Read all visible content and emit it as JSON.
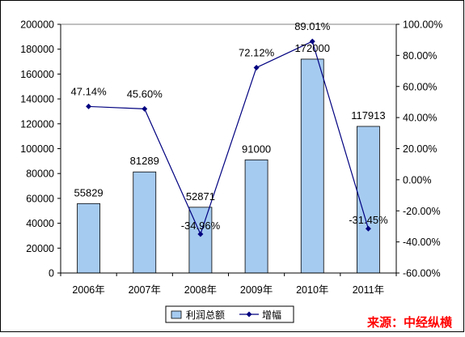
{
  "chart_data": {
    "type": "bar",
    "categories": [
      "2006年",
      "2007年",
      "2008年",
      "2009年",
      "2010年",
      "2011年"
    ],
    "series": [
      {
        "name": "利润总额",
        "chart": "bar",
        "axis": "left",
        "values": [
          55829,
          81289,
          52871,
          91000,
          172000,
          117913
        ],
        "labels": [
          "55829",
          "81289",
          "52871",
          "91000",
          "172000",
          "117913"
        ],
        "color": "#a6cbf0"
      },
      {
        "name": "增幅",
        "chart": "line",
        "axis": "right",
        "values": [
          47.14,
          45.6,
          -34.96,
          72.12,
          89.01,
          -31.45
        ],
        "labels": [
          "47.14%",
          "45.60%",
          "-34.96%",
          "72.12%",
          "89.01%",
          "-31.45%"
        ],
        "color": "#000080"
      }
    ],
    "y_left": {
      "range": [
        0,
        200000
      ],
      "ticks": [
        "0",
        "20000",
        "40000",
        "60000",
        "80000",
        "100000",
        "120000",
        "140000",
        "160000",
        "180000",
        "200000"
      ]
    },
    "y_right": {
      "range": [
        -60,
        100
      ],
      "ticks": [
        "-60.00%",
        "-40.00%",
        "-20.00%",
        "0.00%",
        "20.00%",
        "40.00%",
        "60.00%",
        "80.00%",
        "100.00%"
      ]
    },
    "legend_position": "bottom",
    "grid": false
  },
  "source": "来源：中经纵横"
}
